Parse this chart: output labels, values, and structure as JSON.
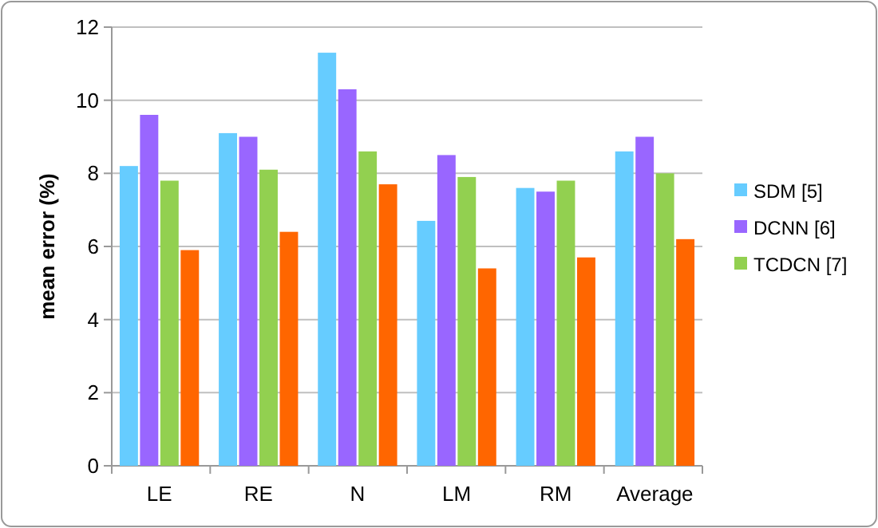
{
  "chart_data": {
    "type": "bar",
    "ylabel": "mean error  (%)",
    "categories": [
      "LE",
      "RE",
      "N",
      "LM",
      "RM",
      "Average"
    ],
    "series": [
      {
        "name": "SDM [5]",
        "color": "#66ccff",
        "values": [
          8.2,
          9.1,
          11.3,
          6.7,
          7.6,
          8.6
        ]
      },
      {
        "name": "DCNN [6]",
        "color": "#9966ff",
        "values": [
          9.6,
          9.0,
          10.3,
          8.5,
          7.5,
          9.0
        ]
      },
      {
        "name": "TCDCN [7]",
        "color": "#92d050",
        "values": [
          7.8,
          8.1,
          8.6,
          7.9,
          7.8,
          8.0
        ]
      },
      {
        "color": "#ff6600",
        "values": [
          5.9,
          6.4,
          7.7,
          5.4,
          5.7,
          6.2
        ]
      }
    ],
    "ylim": [
      0,
      12
    ],
    "yticks": [
      0,
      2,
      4,
      6,
      8,
      10,
      12
    ],
    "grid": "y",
    "legend": "right"
  }
}
